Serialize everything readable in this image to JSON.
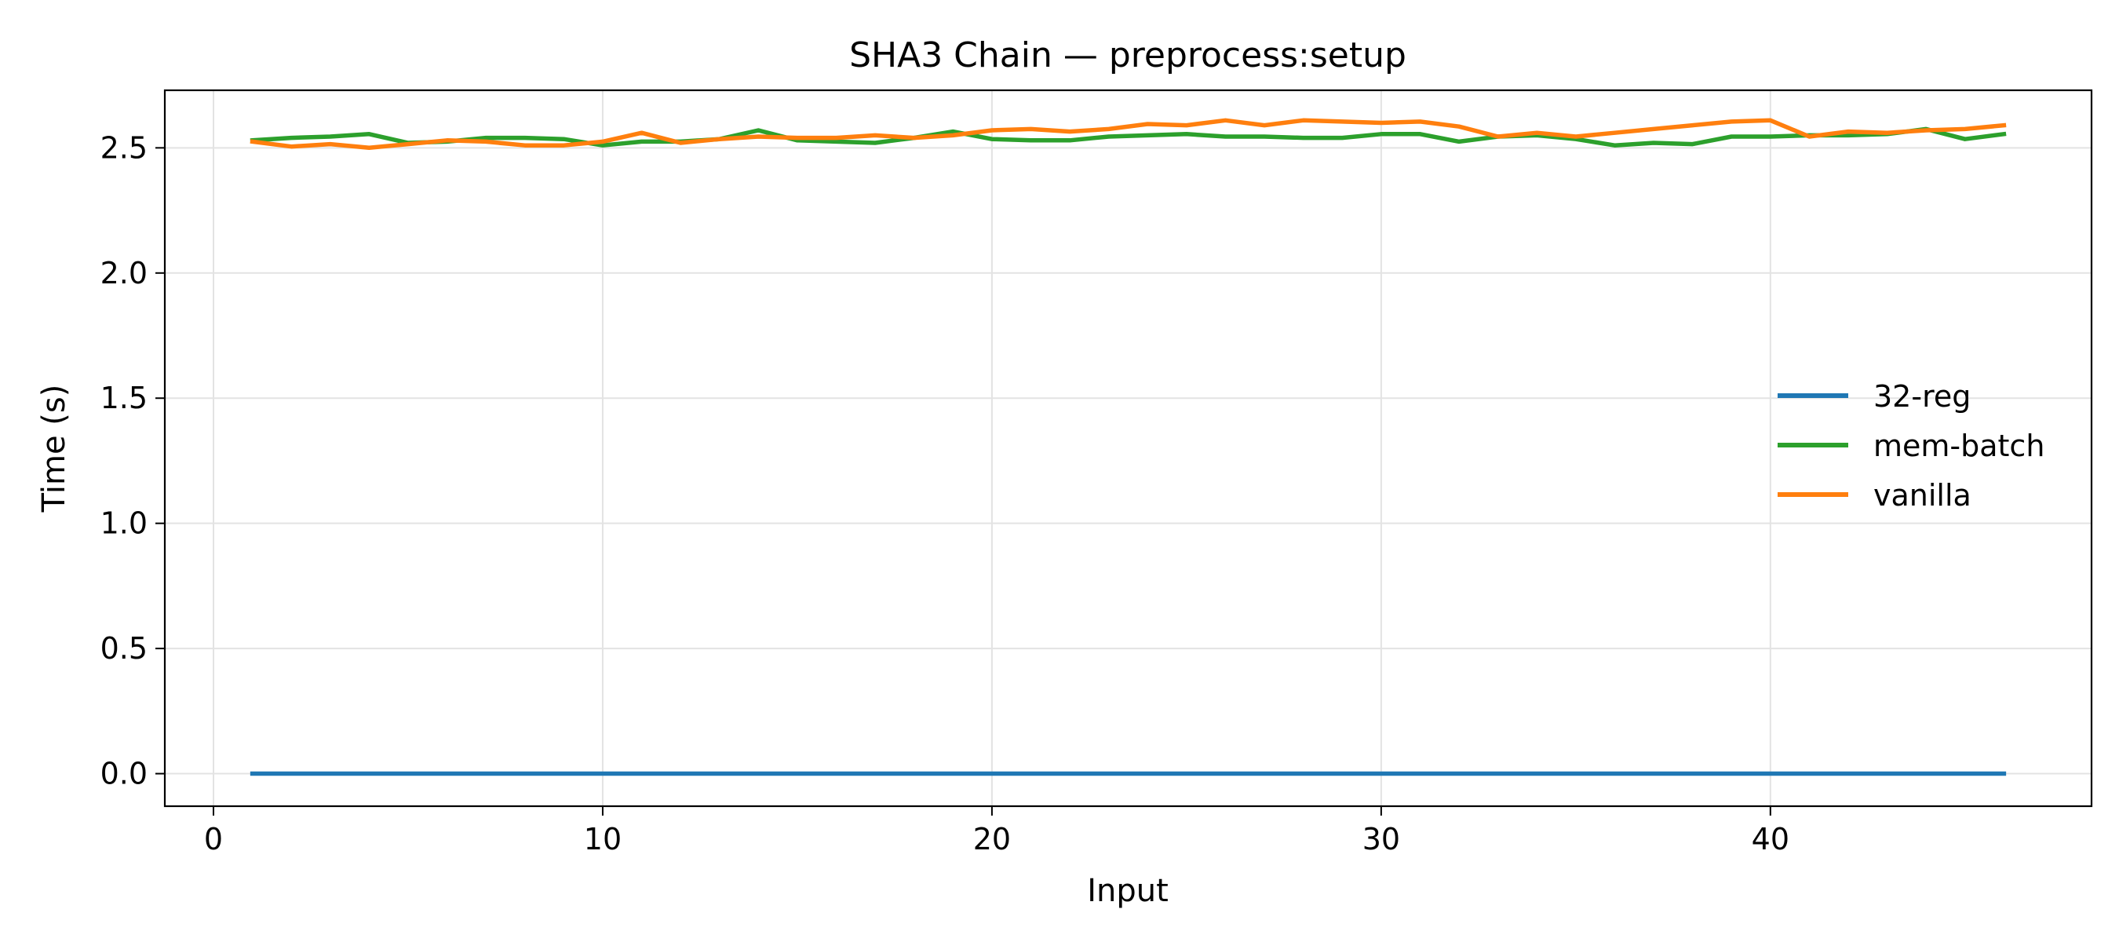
{
  "chart_data": {
    "type": "line",
    "title": "SHA3 Chain — preprocess:setup",
    "xlabel": "Input",
    "ylabel": "Time (s)",
    "xlim": [
      -1.25,
      48.25
    ],
    "ylim": [
      -0.13,
      2.73
    ],
    "xticks": [
      0,
      10,
      20,
      30,
      40
    ],
    "xtick_labels": [
      "0",
      "10",
      "20",
      "30",
      "40"
    ],
    "yticks": [
      0.0,
      0.5,
      1.0,
      1.5,
      2.0,
      2.5
    ],
    "ytick_labels": [
      "0.0",
      "0.5",
      "1.0",
      "1.5",
      "2.0",
      "2.5"
    ],
    "grid": true,
    "legend_position": "center-right",
    "x": [
      1,
      2,
      3,
      4,
      5,
      6,
      7,
      8,
      9,
      10,
      11,
      12,
      13,
      14,
      15,
      16,
      17,
      18,
      19,
      20,
      21,
      22,
      23,
      24,
      25,
      26,
      27,
      28,
      29,
      30,
      31,
      32,
      33,
      34,
      35,
      36,
      37,
      38,
      39,
      40,
      41,
      42,
      43,
      44,
      45,
      46
    ],
    "series": [
      {
        "name": "32-reg",
        "color": "#1f77b4",
        "values": [
          0,
          0,
          0,
          0,
          0,
          0,
          0,
          0,
          0,
          0,
          0,
          0,
          0,
          0,
          0,
          0,
          0,
          0,
          0,
          0,
          0,
          0,
          0,
          0,
          0,
          0,
          0,
          0,
          0,
          0,
          0,
          0,
          0,
          0,
          0,
          0,
          0,
          0,
          0,
          0,
          0,
          0,
          0,
          0,
          0,
          0
        ]
      },
      {
        "name": "mem-batch",
        "color": "#2ca02c",
        "values": [
          2.53,
          2.54,
          2.545,
          2.555,
          2.52,
          2.525,
          2.54,
          2.54,
          2.535,
          2.51,
          2.525,
          2.525,
          2.535,
          2.57,
          2.53,
          2.525,
          2.52,
          2.54,
          2.565,
          2.535,
          2.53,
          2.53,
          2.545,
          2.55,
          2.555,
          2.545,
          2.545,
          2.54,
          2.54,
          2.555,
          2.555,
          2.525,
          2.545,
          2.55,
          2.535,
          2.51,
          2.52,
          2.515,
          2.545,
          2.545,
          2.55,
          2.55,
          2.555,
          2.575,
          2.535,
          2.555
        ]
      },
      {
        "name": "vanilla",
        "color": "#ff7f0e",
        "values": [
          2.525,
          2.505,
          2.515,
          2.5,
          2.515,
          2.53,
          2.525,
          2.51,
          2.51,
          2.525,
          2.56,
          2.52,
          2.535,
          2.545,
          2.54,
          2.54,
          2.55,
          2.54,
          2.55,
          2.57,
          2.575,
          2.565,
          2.575,
          2.595,
          2.59,
          2.61,
          2.59,
          2.61,
          2.605,
          2.6,
          2.605,
          2.585,
          2.545,
          2.56,
          2.545,
          2.56,
          2.575,
          2.59,
          2.605,
          2.61,
          2.545,
          2.565,
          2.56,
          2.57,
          2.575,
          2.59
        ]
      }
    ]
  }
}
